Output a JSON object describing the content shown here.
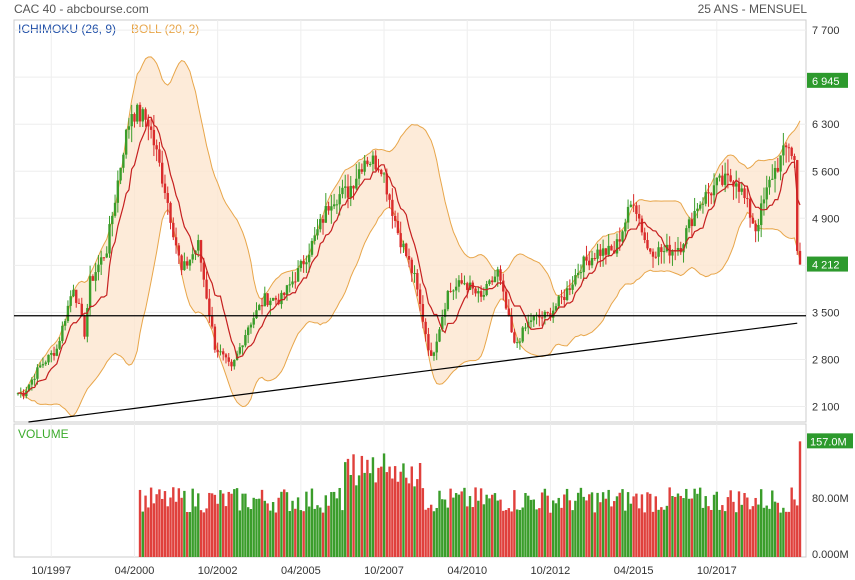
{
  "header": {
    "title": "CAC 40 - abcbourse.com",
    "period": "25 ANS - MENSUEL"
  },
  "chart_data": {
    "type": "candlestick",
    "indicators": [
      {
        "name": "ICHIMOKU (26, 9)",
        "color": "#1f4fa8"
      },
      {
        "name": "BOLL (20, 2)",
        "color": "#e8a64a"
      }
    ],
    "x_ticks": [
      "10/1997",
      "04/2000",
      "10/2002",
      "04/2005",
      "10/2007",
      "04/2010",
      "10/2012",
      "04/2015",
      "10/2017"
    ],
    "price_axis": {
      "ticks": [
        2100,
        2800,
        3500,
        4200,
        4900,
        5600,
        6300,
        7000,
        7700
      ],
      "tick_labels": [
        "2 100",
        "2 800",
        "3 500",
        "4 200",
        "4 900",
        "5 600",
        "6 300",
        "7 000",
        "7 700"
      ],
      "range": [
        1870,
        7850
      ]
    },
    "badges": [
      {
        "label": "6 945",
        "value": 6945,
        "color": "#2d9a2d"
      },
      {
        "label": "4 212",
        "value": 4212,
        "color": "#2d9a2d"
      }
    ],
    "horizontal_line": 3450,
    "trendline": {
      "start": [
        "10/1996",
        1850
      ],
      "end": [
        "03/2020",
        3340
      ]
    },
    "series_anchors": [
      [
        "12/1996",
        2300
      ],
      [
        "06/1997",
        2700
      ],
      [
        "12/1997",
        2960
      ],
      [
        "06/1998",
        3900
      ],
      [
        "10/1998",
        3200
      ],
      [
        "12/1998",
        3950
      ],
      [
        "06/1999",
        4450
      ],
      [
        "12/1999",
        5950
      ],
      [
        "03/2000",
        6500
      ],
      [
        "09/2000",
        6350
      ],
      [
        "03/2001",
        5350
      ],
      [
        "09/2001",
        4100
      ],
      [
        "03/2002",
        4500
      ],
      [
        "09/2002",
        3000
      ],
      [
        "03/2003",
        2650
      ],
      [
        "09/2003",
        3300
      ],
      [
        "03/2004",
        3700
      ],
      [
        "09/2004",
        3700
      ],
      [
        "03/2005",
        4100
      ],
      [
        "09/2005",
        4600
      ],
      [
        "03/2006",
        5200
      ],
      [
        "09/2006",
        5300
      ],
      [
        "03/2007",
        5800
      ],
      [
        "09/2007",
        5700
      ],
      [
        "03/2008",
        4700
      ],
      [
        "09/2008",
        4000
      ],
      [
        "03/2009",
        2800
      ],
      [
        "09/2009",
        3800
      ],
      [
        "03/2010",
        3950
      ],
      [
        "09/2010",
        3700
      ],
      [
        "03/2011",
        4100
      ],
      [
        "09/2011",
        3000
      ],
      [
        "03/2012",
        3400
      ],
      [
        "09/2012",
        3450
      ],
      [
        "03/2013",
        3750
      ],
      [
        "09/2013",
        4200
      ],
      [
        "03/2014",
        4400
      ],
      [
        "09/2014",
        4400
      ],
      [
        "04/2015",
        5200
      ],
      [
        "09/2015",
        4450
      ],
      [
        "03/2016",
        4400
      ],
      [
        "09/2016",
        4500
      ],
      [
        "03/2017",
        5100
      ],
      [
        "10/2017",
        5400
      ],
      [
        "05/2018",
        5500
      ],
      [
        "12/2018",
        4750
      ],
      [
        "06/2019",
        5550
      ],
      [
        "12/2019",
        6000
      ],
      [
        "02/2020",
        5750
      ],
      [
        "03/2020",
        4400
      ],
      [
        "04/2020",
        4212
      ]
    ],
    "volume": {
      "title": "VOLUME",
      "ticks": [
        0,
        80,
        157
      ],
      "tick_labels": [
        "0.000M",
        "80.00M",
        "157.0M"
      ],
      "unit": "M",
      "start": "06/2000",
      "last_value": 157,
      "last_label": "157.0M",
      "badge_color": "#2d9a2d"
    }
  }
}
